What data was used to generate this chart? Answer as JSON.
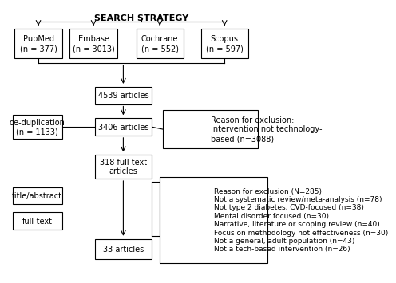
{
  "title": "SEARCH STRATEGY",
  "background_color": "#ffffff",
  "box_facecolor": "#ffffff",
  "box_edgecolor": "#000000",
  "text_color": "#000000",
  "databases": [
    "PubMed\n(n = 377)",
    "Embase\n(n = 3013)",
    "Cochrane\n(n = 552)",
    "Scopus\n(n = 597)"
  ],
  "articles_4539": "4539 articles",
  "dedup_label": "de-duplication\n(n = 1133)",
  "articles_3406": "3406 articles",
  "excl1_label": "Reason for exclusion:\nIntervention not technology-\nbased (n=3088)",
  "articles_318": "318 full text\narticles",
  "title_abstract_label": "title/abstract",
  "fulltext_label": "full-text",
  "articles_33": "33 articles",
  "excl2_label": "Reason for exclusion (N=285):\nNot a systematic review/meta-analysis (n=78)\nNot type 2 diabetes, CVD-focused (n=38)\nMental disorder focused (n=30)\nNarrative, literature or scoping review (n=40)\nFocus on methodology not effectiveness (n=30)\nNot a general, adult population (n=43)\nNot a tech-based intervention (n=26)",
  "fontsize": 7,
  "title_fontsize": 8
}
